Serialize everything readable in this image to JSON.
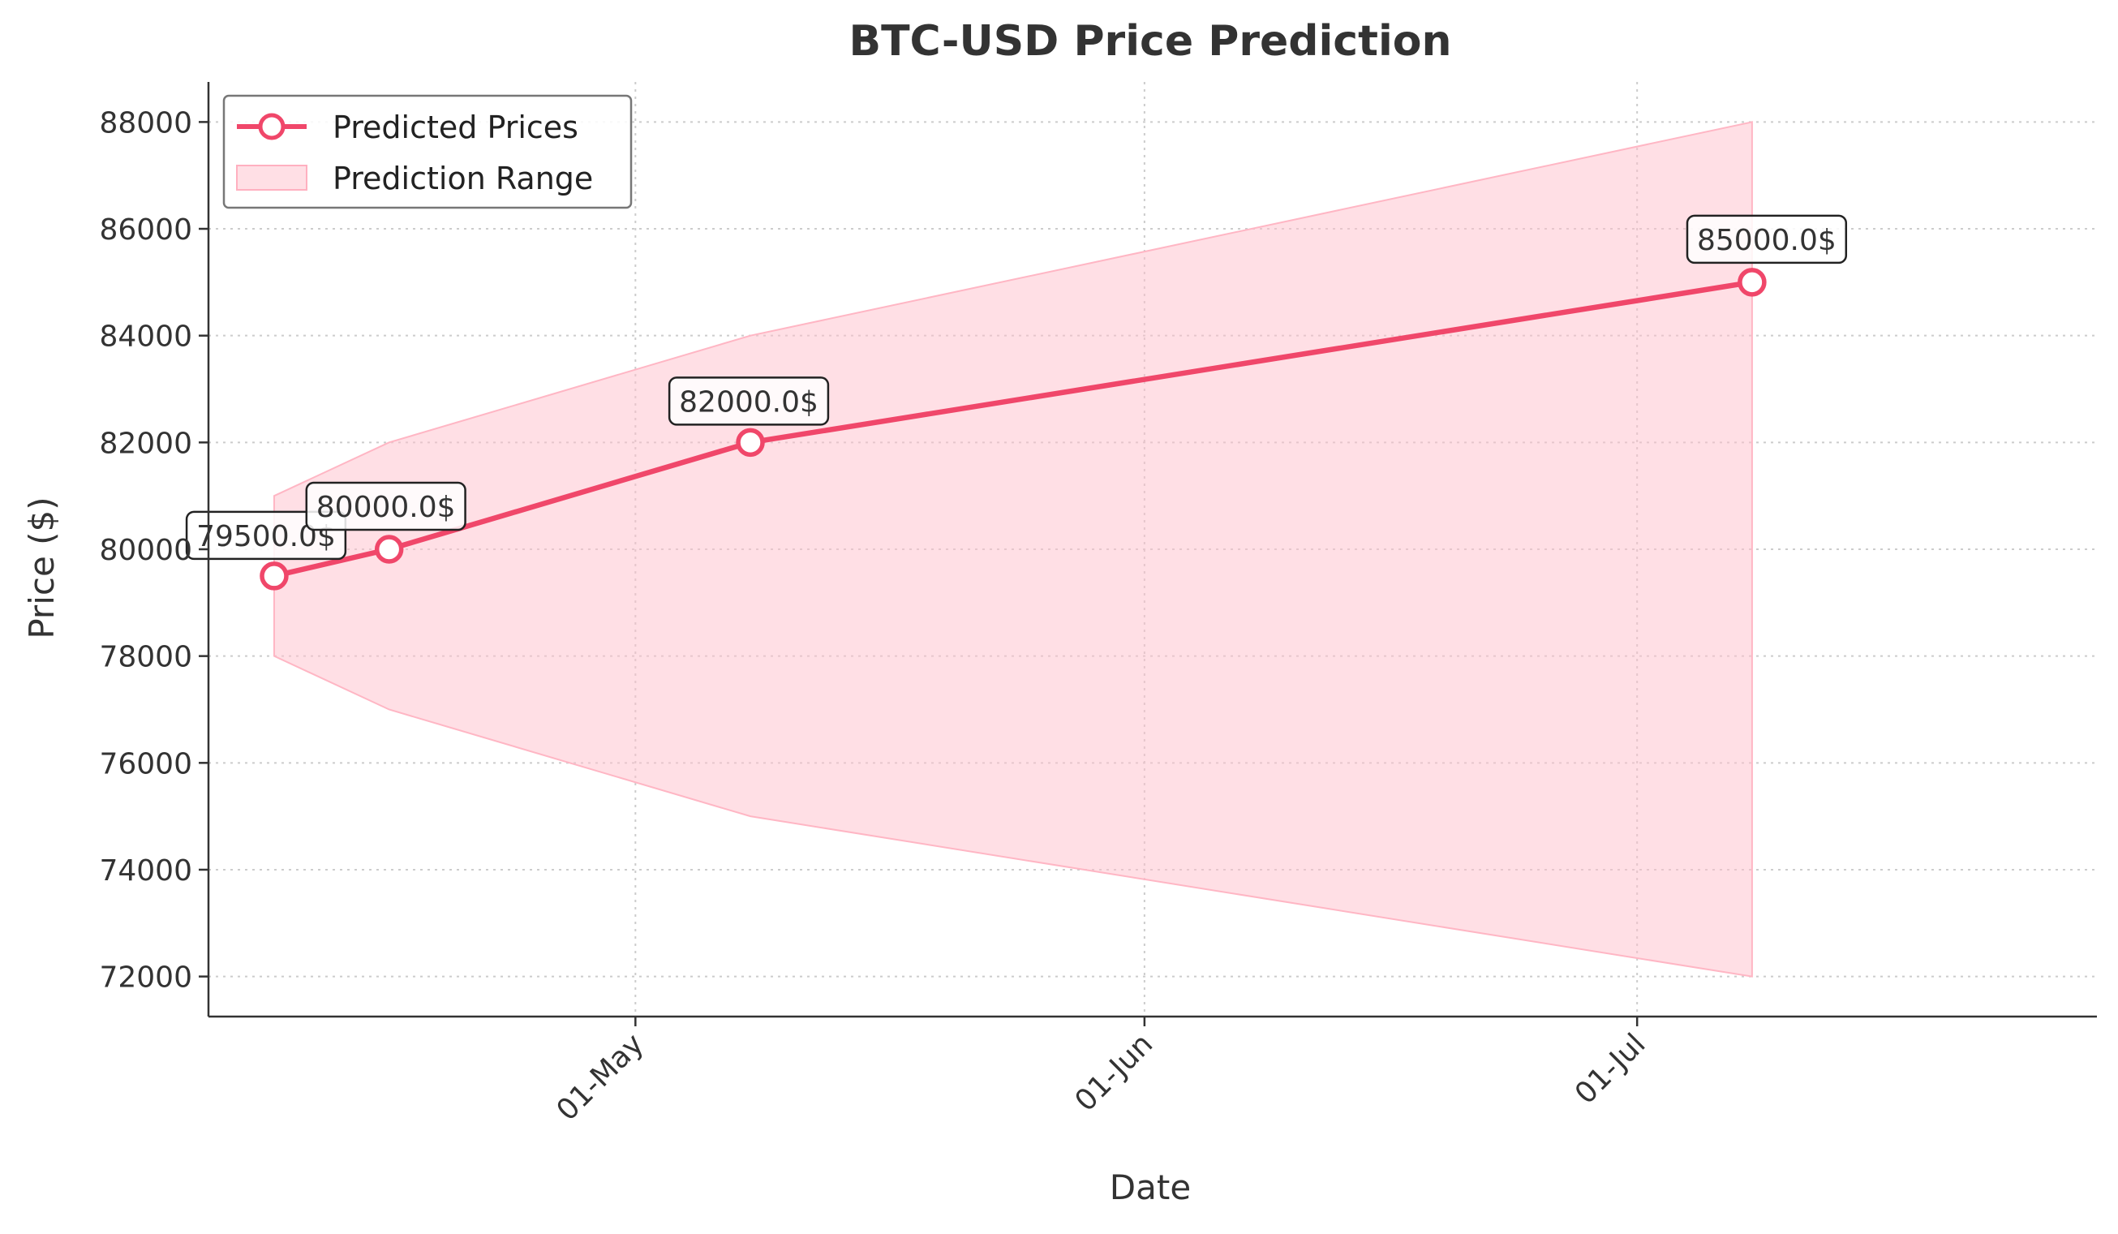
{
  "chart_data": {
    "type": "line",
    "title": "BTC-USD Price Prediction",
    "xlabel": "Date",
    "ylabel": "Price ($)",
    "x_type": "date",
    "x_range": [
      "2025-04-05",
      "2025-07-29"
    ],
    "ylim": [
      71250,
      88750
    ],
    "x_ticks": [
      {
        "date": "2025-05-01",
        "label": "01-May"
      },
      {
        "date": "2025-06-01",
        "label": "01-Jun"
      },
      {
        "date": "2025-07-01",
        "label": "01-Jul"
      }
    ],
    "y_ticks": [
      {
        "value": 72000,
        "label": "72000"
      },
      {
        "value": 74000,
        "label": "74000"
      },
      {
        "value": 76000,
        "label": "76000"
      },
      {
        "value": 78000,
        "label": "78000"
      },
      {
        "value": 80000,
        "label": "80000"
      },
      {
        "value": 82000,
        "label": "82000"
      },
      {
        "value": 84000,
        "label": "84000"
      },
      {
        "value": 86000,
        "label": "86000"
      },
      {
        "value": 88000,
        "label": "88000"
      }
    ],
    "grid": true,
    "legend_position": "top-left",
    "series": [
      {
        "name": "Predicted Prices",
        "kind": "line",
        "color": "#f0476a",
        "x": [
          "2025-04-09",
          "2025-04-16",
          "2025-05-08",
          "2025-07-08"
        ],
        "values": [
          79500,
          80000,
          82000,
          85000
        ],
        "point_labels": [
          "79500.0$",
          "80000.0$",
          "82000.0$",
          "85000.0$"
        ]
      },
      {
        "name": "Prediction Range",
        "kind": "band",
        "color": "#ffc0cb",
        "x": [
          "2025-04-09",
          "2025-04-16",
          "2025-05-08",
          "2025-07-08"
        ],
        "lower": [
          78000,
          77000,
          75000,
          72000
        ],
        "upper": [
          81000,
          82000,
          84000,
          88000
        ]
      }
    ]
  }
}
